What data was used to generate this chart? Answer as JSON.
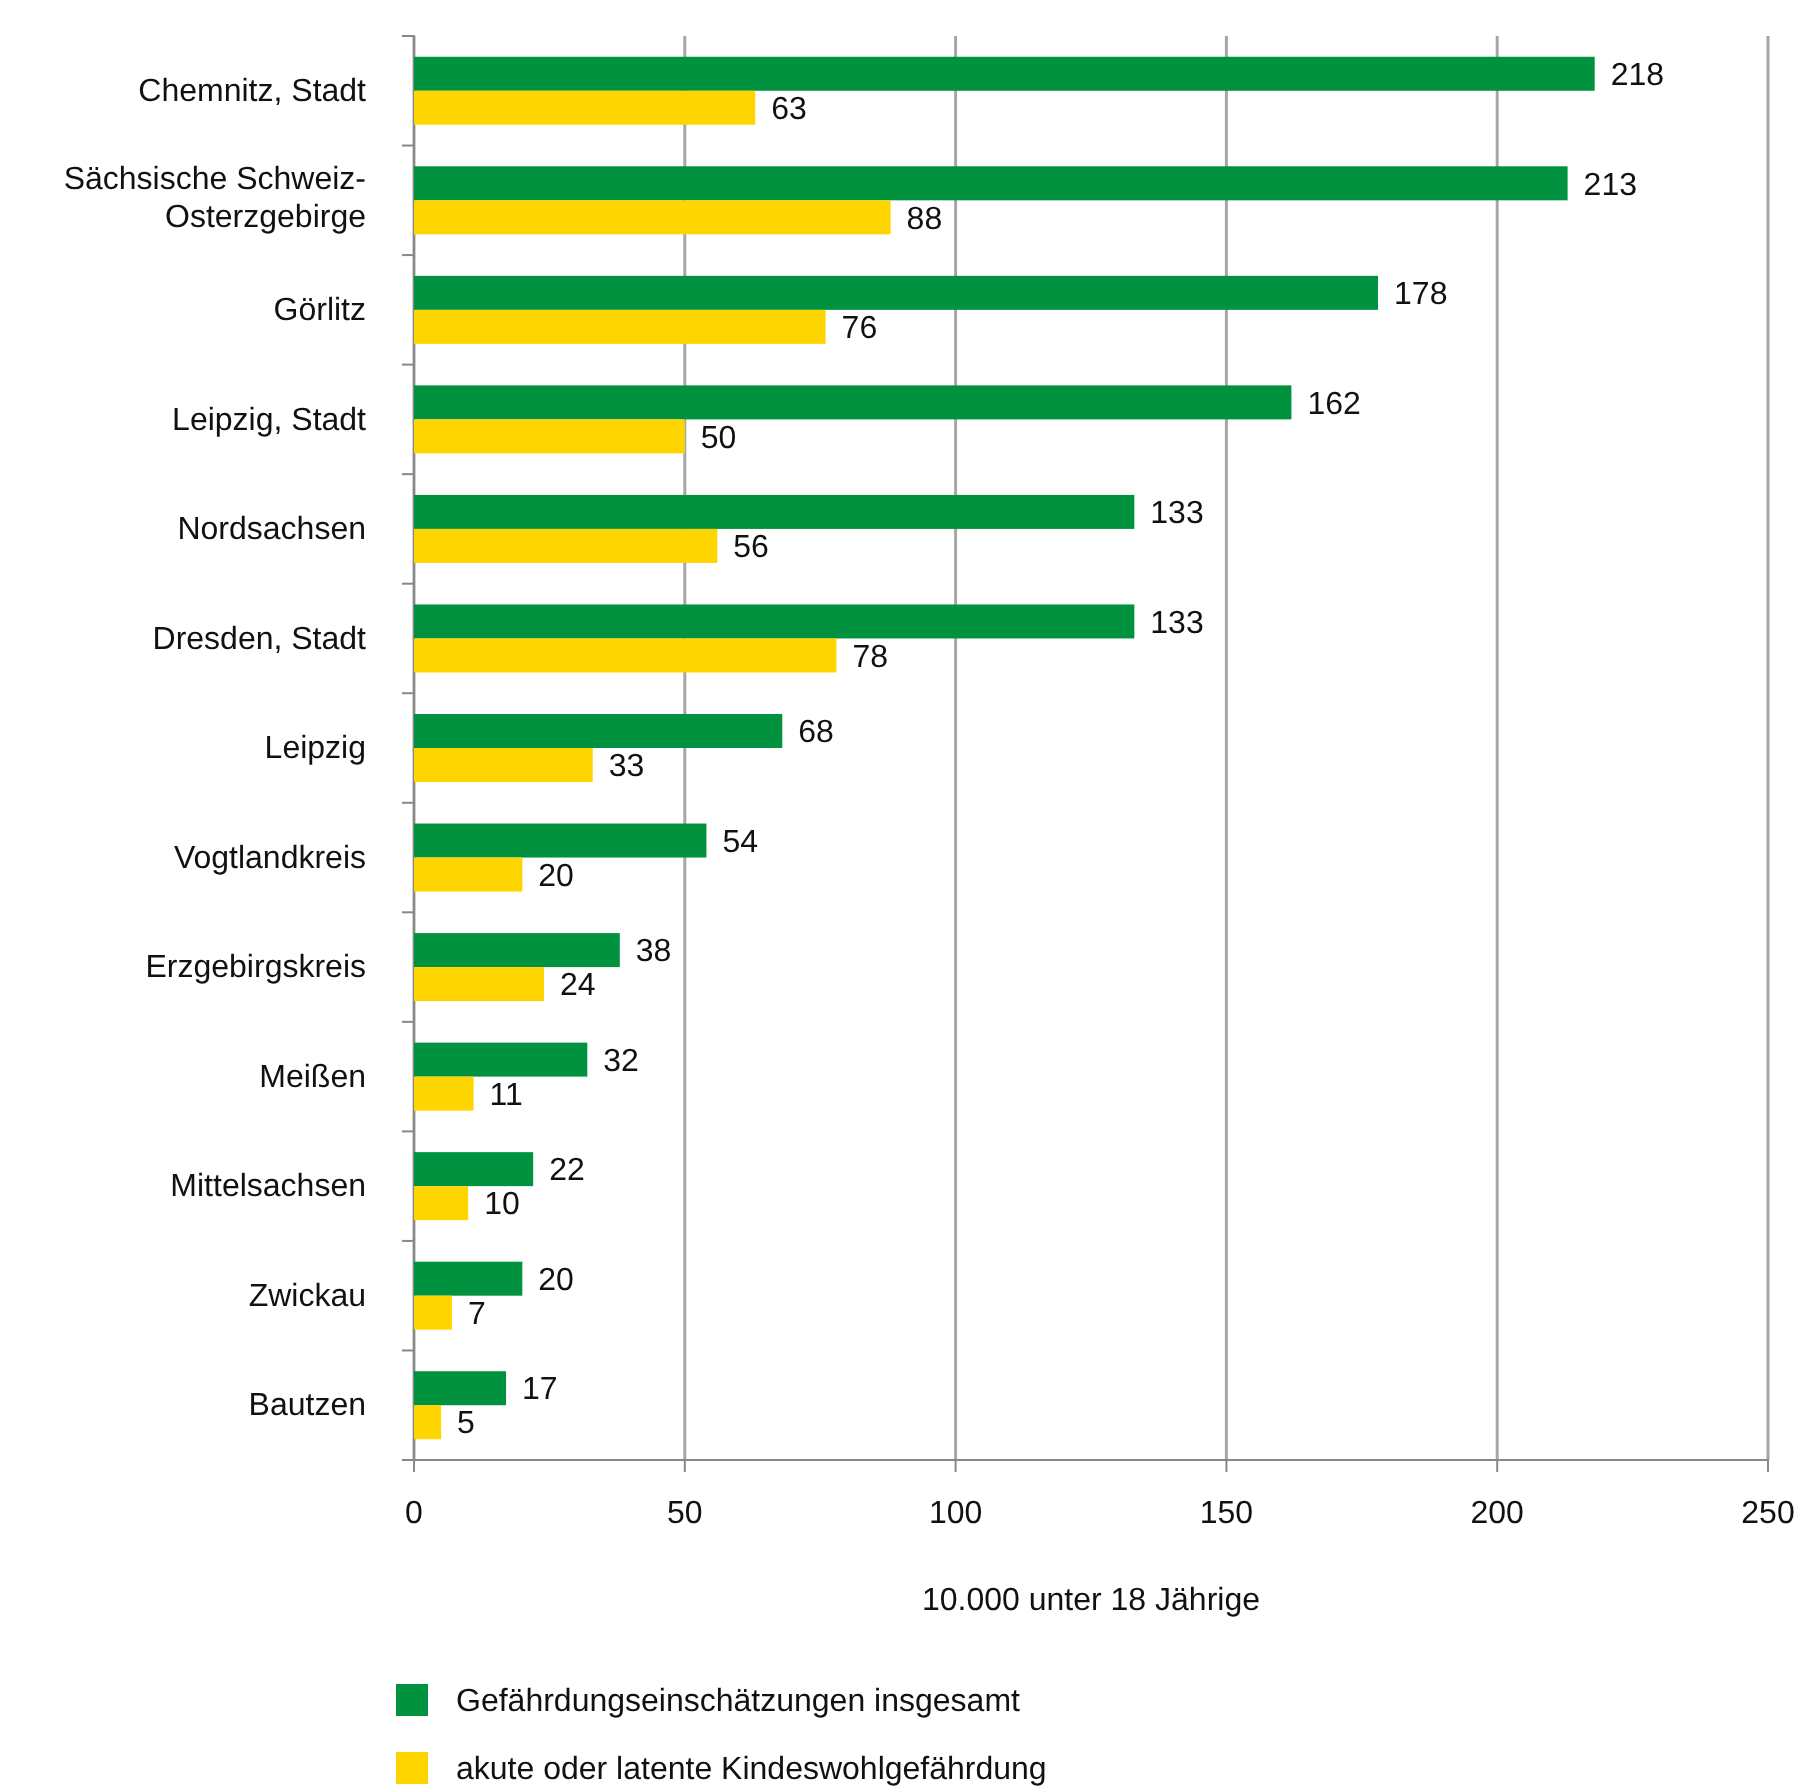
{
  "chart_data": {
    "type": "bar",
    "orientation": "horizontal",
    "xlabel": "10.000 unter 18 Jährige",
    "categories": [
      "Chemnitz, Stadt",
      "Sächsische Schweiz-Osterzgebirge",
      "Görlitz",
      "Leipzig, Stadt",
      "Nordsachsen",
      "Dresden, Stadt",
      "Leipzig",
      "Vogtlandkreis",
      "Erzgebirgskreis",
      "Meißen",
      "Mittelsachsen",
      "Zwickau",
      "Bautzen"
    ],
    "series": [
      {
        "name": "Gefährdungseinschätzungen insgesamt",
        "color": "#00923f",
        "values": [
          218,
          213,
          178,
          162,
          133,
          133,
          68,
          54,
          38,
          32,
          22,
          20,
          17
        ]
      },
      {
        "name": "akute oder latente Kindeswohlgefährdung",
        "color": "#ffd500",
        "values": [
          63,
          88,
          76,
          50,
          56,
          78,
          33,
          20,
          24,
          11,
          10,
          7,
          5
        ]
      }
    ],
    "xlim": [
      0,
      250
    ],
    "xticks": [
      0,
      50,
      100,
      150,
      200,
      250
    ],
    "grid": "x",
    "data_labels": true,
    "legend": "bottom"
  }
}
